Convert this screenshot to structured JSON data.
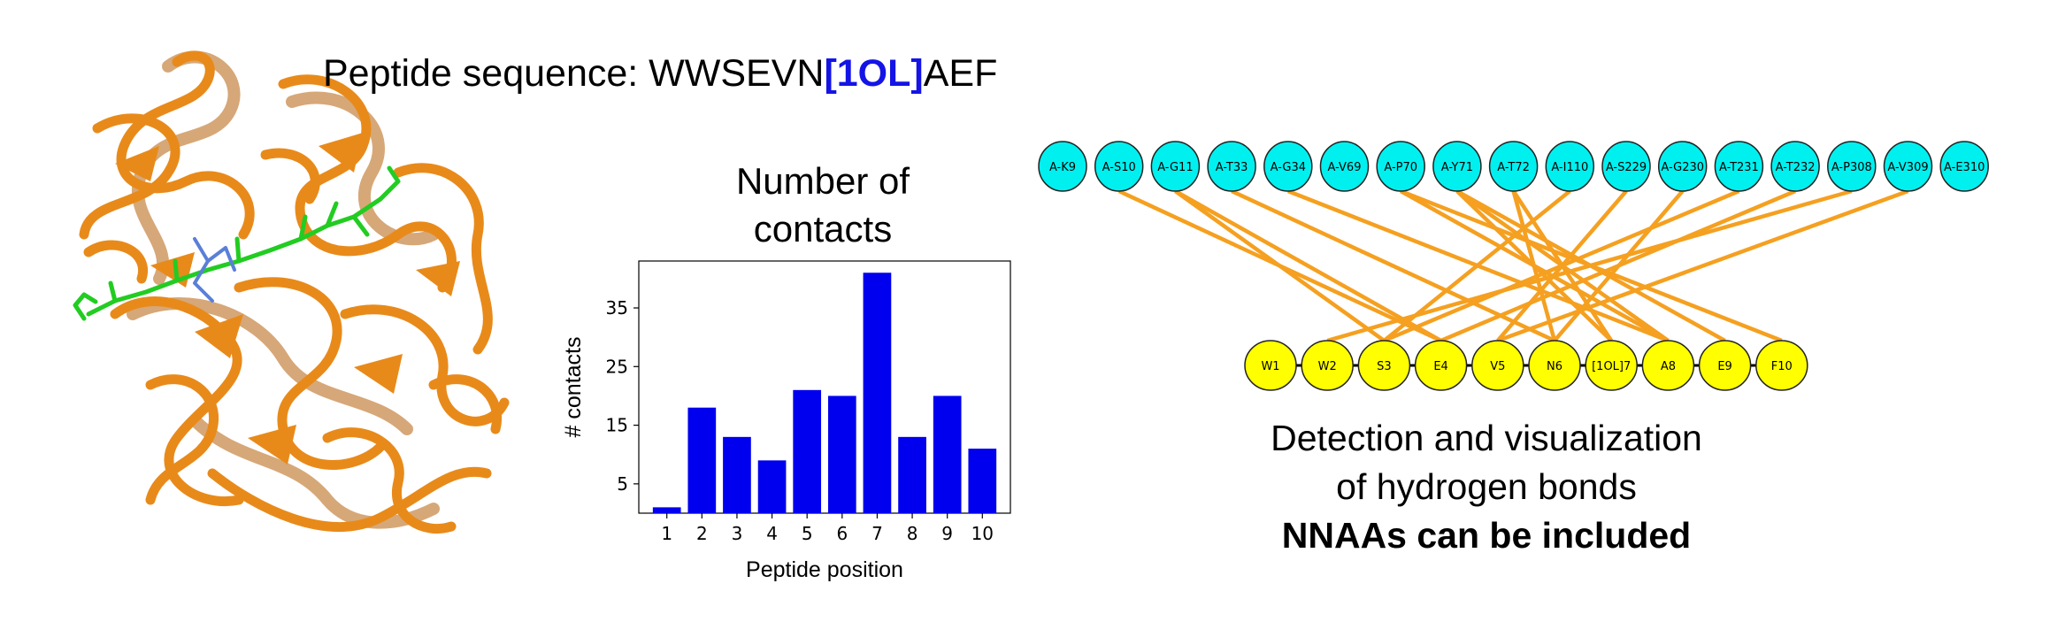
{
  "sequence_title": {
    "prefix": "Peptide sequence: ",
    "part1": "WWSEVN",
    "nnaa": "[1OL]",
    "part2": "AEF",
    "nnaa_color": "#1414e6"
  },
  "chart_data": {
    "type": "bar",
    "title": "Number of contacts",
    "title_lines": [
      "Number of",
      "contacts"
    ],
    "xlabel": "Peptide position",
    "ylabel": "# contacts",
    "categories": [
      "1",
      "2",
      "3",
      "4",
      "5",
      "6",
      "7",
      "8",
      "9",
      "10"
    ],
    "values": [
      1,
      18,
      13,
      9,
      21,
      20,
      41,
      13,
      20,
      11
    ],
    "yticks": [
      5,
      15,
      25,
      35
    ],
    "ylim": [
      0,
      43
    ],
    "bar_color": "#0000ee"
  },
  "network": {
    "receptor_color": "#00f0f0",
    "peptide_color": "#ffff00",
    "edge_color": "#f5a020",
    "receptor_nodes": [
      "A-K9",
      "A-S10",
      "A-G11",
      "A-T33",
      "A-G34",
      "A-V69",
      "A-P70",
      "A-Y71",
      "A-T72",
      "A-I110",
      "A-S229",
      "A-G230",
      "A-T231",
      "A-T232",
      "A-P308",
      "A-V309",
      "A-E310"
    ],
    "peptide_nodes": [
      "W1",
      "W2",
      "S3",
      "E4",
      "V5",
      "N6",
      "[1OL]7",
      "A8",
      "E9",
      "F10"
    ],
    "edges": [
      [
        "A-S10",
        "E4"
      ],
      [
        "A-G11",
        "E4"
      ],
      [
        "A-G11",
        "S3"
      ],
      [
        "A-T33",
        "N6"
      ],
      [
        "A-G34",
        "A8"
      ],
      [
        "A-P70",
        "A8"
      ],
      [
        "A-P70",
        "F10"
      ],
      [
        "A-Y71",
        "[1OL]7"
      ],
      [
        "A-Y71",
        "A8"
      ],
      [
        "A-Y71",
        "E9"
      ],
      [
        "A-T72",
        "N6"
      ],
      [
        "A-T72",
        "[1OL]7"
      ],
      [
        "A-I110",
        "S3"
      ],
      [
        "A-S229",
        "V5"
      ],
      [
        "A-G230",
        "N6"
      ],
      [
        "A-T231",
        "S3"
      ],
      [
        "A-T232",
        "E4"
      ],
      [
        "A-P308",
        "W2"
      ],
      [
        "A-V309",
        "V5"
      ]
    ]
  },
  "caption": {
    "line1": "Detection and visualization",
    "line2": "of hydrogen bonds",
    "line3": "NNAAs can be included"
  },
  "colors": {
    "ribbon": "#e88a1a",
    "ribbon_dark": "#b5600a",
    "ligand_green": "#22cc22",
    "ligand_blue": "#5a7fd8"
  }
}
